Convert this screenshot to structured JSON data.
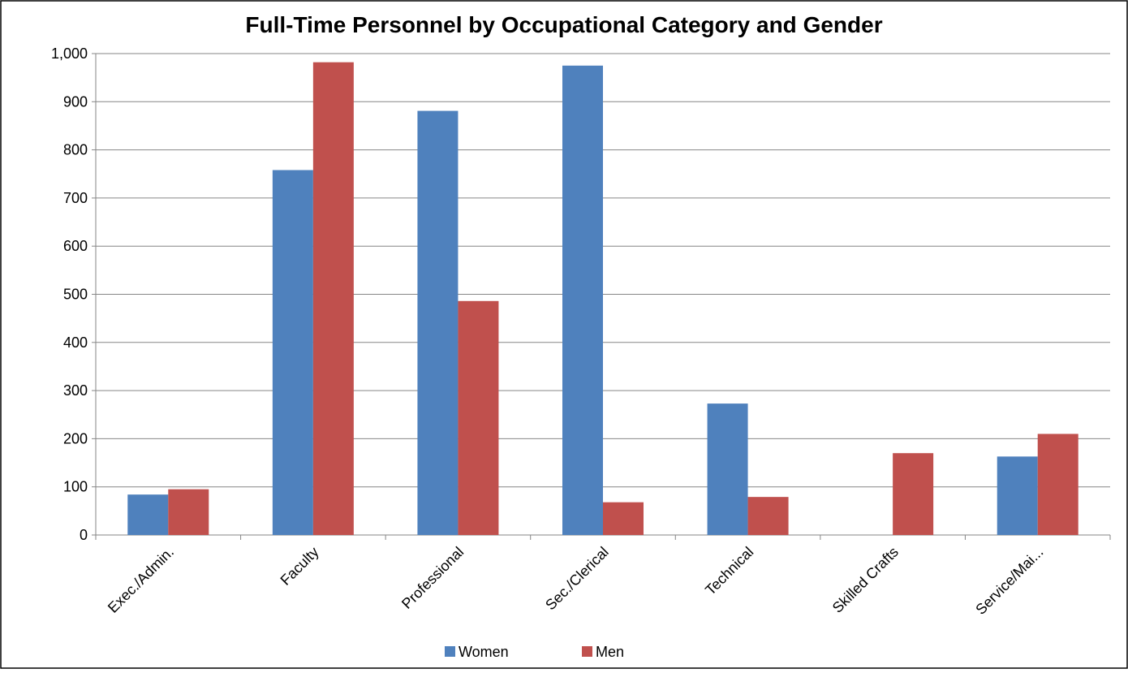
{
  "chart_data": {
    "type": "bar",
    "title": "Full-Time Personnel by Occupational Category and Gender",
    "categories": [
      "Exec./Admin.",
      "Faculty",
      "Professional",
      "Sec./Clerical",
      "Technical",
      "Skilled Crafts",
      "Service/Mai..."
    ],
    "series": [
      {
        "name": "Women",
        "color": "#4f81bd",
        "values": [
          84,
          758,
          881,
          975,
          273,
          0,
          163
        ]
      },
      {
        "name": "Men",
        "color": "#c0504d",
        "values": [
          95,
          982,
          486,
          68,
          79,
          170,
          210
        ]
      }
    ],
    "ylim": [
      0,
      1000
    ],
    "yticks": [
      0,
      100,
      200,
      300,
      400,
      500,
      600,
      700,
      800,
      900,
      {
        "value": 1000,
        "label": "1,000"
      }
    ],
    "grid": true,
    "legend": "bottom"
  }
}
